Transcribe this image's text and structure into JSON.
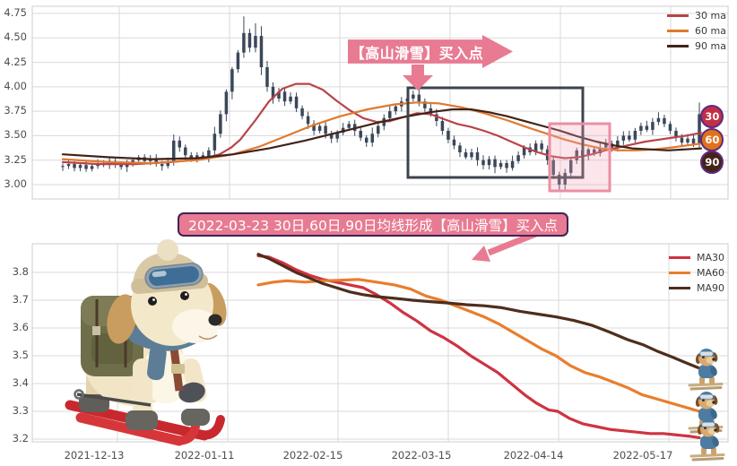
{
  "top_chart": {
    "banner": "【高山滑雪】买入点",
    "y_ticks": [
      "4.75",
      "4.50",
      "4.25",
      "4.00",
      "3.75",
      "3.50",
      "3.25",
      "3.00"
    ],
    "legend": [
      {
        "label": "30 ma",
        "color": "#b8434a"
      },
      {
        "label": "60 ma",
        "color": "#e0792f"
      },
      {
        "label": "90 ma",
        "color": "#402318"
      }
    ],
    "badges": [
      {
        "label": "30",
        "color": "#c22f44"
      },
      {
        "label": "60",
        "color": "#e2711b"
      },
      {
        "label": "90",
        "color": "#46231a"
      }
    ]
  },
  "mid_annotation": "2022-03-23 30日,60日,90日均线形成【高山滑雪】买入点",
  "bottom_chart": {
    "y_ticks": [
      "3.8",
      "3.7",
      "3.6",
      "3.5",
      "3.4",
      "3.3",
      "3.2"
    ],
    "x_ticks": [
      "2021-12-13",
      "2022-01-11",
      "2022-02-15",
      "2022-03-15",
      "2022-04-14",
      "2022-05-17"
    ],
    "legend": [
      {
        "label": "MA30",
        "color": "#cf3341"
      },
      {
        "label": "MA60",
        "color": "#e87e2e"
      },
      {
        "label": "MA90",
        "color": "#4f2d1c"
      }
    ]
  },
  "chart_data": [
    {
      "type": "candlestick",
      "title": "",
      "ylim": [
        2.9,
        4.85
      ],
      "y_ticks": [
        3.0,
        3.25,
        3.5,
        3.75,
        4.0,
        4.25,
        4.5,
        4.75
      ],
      "grid": true,
      "legend_position": "upper right",
      "closes": [
        3.19,
        3.21,
        3.17,
        3.2,
        3.16,
        3.19,
        3.22,
        3.2,
        3.24,
        3.21,
        3.18,
        3.22,
        3.25,
        3.28,
        3.24,
        3.27,
        3.21,
        3.19,
        3.23,
        3.45,
        3.38,
        3.3,
        3.26,
        3.3,
        3.27,
        3.35,
        3.52,
        3.72,
        3.95,
        4.18,
        4.35,
        4.55,
        4.4,
        4.52,
        4.2,
        4.0,
        3.88,
        3.95,
        3.85,
        3.9,
        3.78,
        3.7,
        3.62,
        3.55,
        3.6,
        3.52,
        3.47,
        3.53,
        3.58,
        3.62,
        3.55,
        3.48,
        3.43,
        3.52,
        3.6,
        3.68,
        3.75,
        3.8,
        3.85,
        3.88,
        3.92,
        3.85,
        3.78,
        3.72,
        3.65,
        3.55,
        3.46,
        3.4,
        3.33,
        3.28,
        3.33,
        3.25,
        3.2,
        3.26,
        3.18,
        3.22,
        3.17,
        3.24,
        3.3,
        3.38,
        3.33,
        3.42,
        3.36,
        3.25,
        3.1,
        3.0,
        3.12,
        3.25,
        3.35,
        3.3,
        3.36,
        3.32,
        3.38,
        3.42,
        3.38,
        3.45,
        3.5,
        3.46,
        3.55,
        3.6,
        3.56,
        3.64,
        3.68,
        3.62,
        3.55,
        3.48,
        3.43,
        3.47,
        3.42,
        3.72
      ],
      "wick_overrides": {
        "31": {
          "h": 4.72
        },
        "33": {
          "h": 4.65
        },
        "85": {
          "l": 2.94
        },
        "102": {
          "h": 3.74
        },
        "109": {
          "h": 3.84
        }
      },
      "series": [
        {
          "name": "30 ma",
          "color": "#b8434a",
          "points": [
            [
              70,
              3.23
            ],
            [
              110,
              3.21
            ],
            [
              150,
              3.21
            ],
            [
              190,
              3.23
            ],
            [
              225,
              3.26
            ],
            [
              245,
              3.31
            ],
            [
              258,
              3.38
            ],
            [
              268,
              3.46
            ],
            [
              285,
              3.66
            ],
            [
              300,
              3.85
            ],
            [
              315,
              3.98
            ],
            [
              330,
              4.03
            ],
            [
              345,
              4.03
            ],
            [
              360,
              3.97
            ],
            [
              375,
              3.86
            ],
            [
              390,
              3.76
            ],
            [
              405,
              3.68
            ],
            [
              420,
              3.64
            ],
            [
              435,
              3.65
            ],
            [
              450,
              3.69
            ],
            [
              465,
              3.73
            ],
            [
              480,
              3.72
            ],
            [
              495,
              3.67
            ],
            [
              510,
              3.62
            ],
            [
              525,
              3.59
            ],
            [
              540,
              3.55
            ],
            [
              555,
              3.5
            ],
            [
              570,
              3.44
            ],
            [
              585,
              3.38
            ],
            [
              600,
              3.33
            ],
            [
              615,
              3.29
            ],
            [
              630,
              3.27
            ],
            [
              645,
              3.28
            ],
            [
              660,
              3.31
            ],
            [
              675,
              3.35
            ],
            [
              690,
              3.38
            ],
            [
              705,
              3.41
            ],
            [
              720,
              3.44
            ],
            [
              735,
              3.46
            ],
            [
              750,
              3.48
            ],
            [
              765,
              3.5
            ],
            [
              782,
              3.53
            ]
          ]
        },
        {
          "name": "60 ma",
          "color": "#e0792f",
          "points": [
            [
              70,
              3.26
            ],
            [
              120,
              3.23
            ],
            [
              170,
              3.22
            ],
            [
              220,
              3.25
            ],
            [
              260,
              3.31
            ],
            [
              290,
              3.39
            ],
            [
              320,
              3.5
            ],
            [
              350,
              3.61
            ],
            [
              380,
              3.7
            ],
            [
              410,
              3.77
            ],
            [
              440,
              3.82
            ],
            [
              465,
              3.84
            ],
            [
              490,
              3.83
            ],
            [
              515,
              3.79
            ],
            [
              540,
              3.73
            ],
            [
              565,
              3.66
            ],
            [
              590,
              3.58
            ],
            [
              610,
              3.52
            ],
            [
              630,
              3.46
            ],
            [
              650,
              3.41
            ],
            [
              670,
              3.37
            ],
            [
              690,
              3.35
            ],
            [
              710,
              3.35
            ],
            [
              730,
              3.36
            ],
            [
              750,
              3.38
            ],
            [
              766,
              3.4
            ],
            [
              782,
              3.42
            ]
          ]
        },
        {
          "name": "90 ma",
          "color": "#402318",
          "points": [
            [
              70,
              3.31
            ],
            [
              120,
              3.28
            ],
            [
              170,
              3.26
            ],
            [
              220,
              3.27
            ],
            [
              260,
              3.31
            ],
            [
              300,
              3.37
            ],
            [
              340,
              3.45
            ],
            [
              380,
              3.54
            ],
            [
              420,
              3.63
            ],
            [
              450,
              3.69
            ],
            [
              480,
              3.74
            ],
            [
              505,
              3.77
            ],
            [
              525,
              3.77
            ],
            [
              545,
              3.74
            ],
            [
              565,
              3.7
            ],
            [
              585,
              3.65
            ],
            [
              605,
              3.6
            ],
            [
              625,
              3.55
            ],
            [
              645,
              3.49
            ],
            [
              665,
              3.44
            ],
            [
              685,
              3.4
            ],
            [
              705,
              3.37
            ],
            [
              725,
              3.36
            ],
            [
              745,
              3.35
            ],
            [
              764,
              3.36
            ],
            [
              782,
              3.37
            ]
          ]
        }
      ]
    },
    {
      "type": "line",
      "title": "",
      "ylim": [
        3.15,
        3.9
      ],
      "y_ticks": [
        3.2,
        3.3,
        3.4,
        3.5,
        3.6,
        3.7,
        3.8
      ],
      "x_ticklabels": [
        "2021-12-13",
        "2022-01-11",
        "2022-02-15",
        "2022-03-15",
        "2022-04-14",
        "2022-05-17"
      ],
      "grid": true,
      "legend_position": "upper right",
      "series": [
        {
          "name": "MA30",
          "color": "#cf3341",
          "points": [
            [
              288,
              3.86
            ],
            [
              300,
              3.855
            ],
            [
              315,
              3.835
            ],
            [
              330,
              3.81
            ],
            [
              345,
              3.79
            ],
            [
              360,
              3.775
            ],
            [
              375,
              3.765
            ],
            [
              390,
              3.755
            ],
            [
              405,
              3.745
            ],
            [
              420,
              3.72
            ],
            [
              435,
              3.69
            ],
            [
              450,
              3.655
            ],
            [
              465,
              3.625
            ],
            [
              480,
              3.59
            ],
            [
              495,
              3.565
            ],
            [
              510,
              3.535
            ],
            [
              525,
              3.5
            ],
            [
              540,
              3.47
            ],
            [
              555,
              3.44
            ],
            [
              570,
              3.4
            ],
            [
              585,
              3.36
            ],
            [
              598,
              3.33
            ],
            [
              612,
              3.305
            ],
            [
              622,
              3.3
            ],
            [
              635,
              3.275
            ],
            [
              650,
              3.255
            ],
            [
              665,
              3.245
            ],
            [
              680,
              3.235
            ],
            [
              695,
              3.23
            ],
            [
              710,
              3.225
            ],
            [
              725,
              3.22
            ],
            [
              740,
              3.22
            ],
            [
              755,
              3.215
            ],
            [
              770,
              3.21
            ],
            [
              780,
              3.205
            ]
          ]
        },
        {
          "name": "MA60",
          "color": "#e87e2e",
          "points": [
            [
              288,
              3.755
            ],
            [
              305,
              3.765
            ],
            [
              320,
              3.77
            ],
            [
              340,
              3.765
            ],
            [
              360,
              3.77
            ],
            [
              380,
              3.772
            ],
            [
              400,
              3.775
            ],
            [
              420,
              3.765
            ],
            [
              440,
              3.755
            ],
            [
              458,
              3.74
            ],
            [
              475,
              3.715
            ],
            [
              492,
              3.7
            ],
            [
              508,
              3.68
            ],
            [
              524,
              3.66
            ],
            [
              540,
              3.64
            ],
            [
              556,
              3.615
            ],
            [
              572,
              3.585
            ],
            [
              588,
              3.555
            ],
            [
              604,
              3.525
            ],
            [
              620,
              3.5
            ],
            [
              636,
              3.465
            ],
            [
              652,
              3.44
            ],
            [
              668,
              3.425
            ],
            [
              684,
              3.405
            ],
            [
              700,
              3.385
            ],
            [
              716,
              3.36
            ],
            [
              732,
              3.345
            ],
            [
              748,
              3.33
            ],
            [
              764,
              3.315
            ],
            [
              780,
              3.3
            ]
          ]
        },
        {
          "name": "MA90",
          "color": "#4f2d1c",
          "points": [
            [
              288,
              3.865
            ],
            [
              300,
              3.85
            ],
            [
              315,
              3.825
            ],
            [
              330,
              3.8
            ],
            [
              345,
              3.78
            ],
            [
              360,
              3.76
            ],
            [
              375,
              3.745
            ],
            [
              390,
              3.73
            ],
            [
              405,
              3.72
            ],
            [
              420,
              3.713
            ],
            [
              440,
              3.707
            ],
            [
              460,
              3.7
            ],
            [
              480,
              3.695
            ],
            [
              500,
              3.69
            ],
            [
              520,
              3.684
            ],
            [
              540,
              3.68
            ],
            [
              560,
              3.673
            ],
            [
              580,
              3.66
            ],
            [
              600,
              3.65
            ],
            [
              620,
              3.64
            ],
            [
              640,
              3.627
            ],
            [
              660,
              3.61
            ],
            [
              680,
              3.585
            ],
            [
              700,
              3.558
            ],
            [
              717,
              3.54
            ],
            [
              734,
              3.515
            ],
            [
              750,
              3.495
            ],
            [
              764,
              3.476
            ],
            [
              780,
              3.455
            ]
          ]
        }
      ]
    }
  ]
}
